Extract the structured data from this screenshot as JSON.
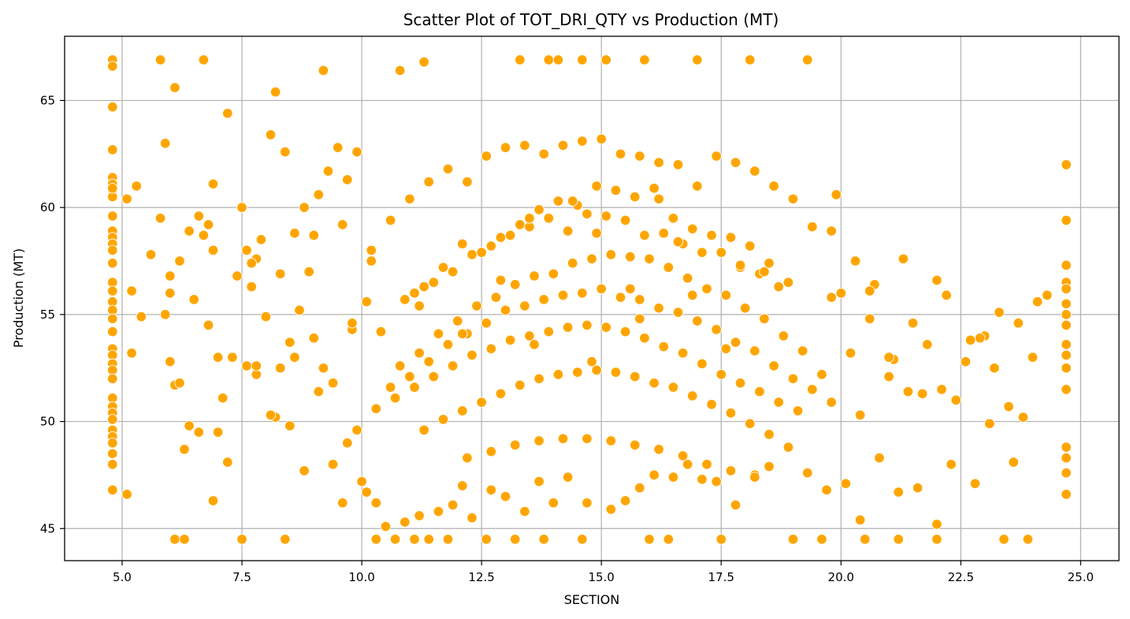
{
  "chart_data": {
    "type": "scatter",
    "title": "Scatter Plot of TOT_DRI_QTY vs Production (MT)",
    "xlabel": "SECTION",
    "ylabel": "Production (MT)",
    "xlim": [
      3.8,
      25.8
    ],
    "ylim": [
      43.5,
      68.0
    ],
    "x_ticks": [
      5.0,
      7.5,
      10.0,
      12.5,
      15.0,
      17.5,
      20.0,
      22.5,
      25.0
    ],
    "x_tick_labels": [
      "5.0",
      "7.5",
      "10.0",
      "12.5",
      "15.0",
      "17.5",
      "20.0",
      "22.5",
      "25.0"
    ],
    "y_ticks": [
      45,
      50,
      55,
      60,
      65
    ],
    "y_tick_labels": [
      "45",
      "50",
      "55",
      "60",
      "65"
    ],
    "grid": true,
    "point_color": "#FFA500",
    "point_edge_color": "#FFFFFF",
    "series": [
      {
        "x": [
          4.8,
          4.8,
          4.8,
          4.8,
          4.8,
          4.8,
          4.8,
          4.8,
          4.8,
          4.8,
          4.8,
          4.8,
          4.8,
          4.8,
          4.8,
          4.8,
          4.8,
          4.8,
          4.8,
          4.8,
          4.8,
          4.8,
          4.8,
          4.8,
          4.8,
          4.8,
          4.8,
          4.8,
          4.8,
          4.8,
          4.8,
          4.8,
          4.8,
          4.8,
          4.8,
          4.8,
          24.7,
          24.7,
          24.7,
          24.7,
          24.7,
          24.7,
          24.7,
          24.7,
          24.7,
          24.7,
          24.7,
          24.7,
          24.7,
          24.7,
          24.7,
          24.7,
          5.1,
          5.2,
          5.3,
          5.6,
          5.8,
          5.9,
          6.0,
          6.1,
          6.2,
          6.4,
          6.6,
          6.7,
          6.8,
          6.9,
          7.0,
          7.2,
          7.4,
          7.5,
          7.6,
          7.8,
          7.9,
          8.1,
          8.2,
          8.4,
          8.6,
          8.8,
          8.9,
          9.1,
          9.3,
          9.5,
          9.7,
          9.9,
          6.1,
          6.3,
          7.5,
          8.4,
          10.3,
          10.7,
          11.1,
          11.4,
          11.8,
          12.6,
          13.2,
          13.8,
          14.6,
          16.0,
          16.4,
          17.5,
          19.0,
          19.6,
          20.5,
          21.2,
          22.0,
          23.4,
          23.9,
          5.8,
          6.7,
          9.2,
          10.8,
          11.3,
          13.3,
          13.9,
          14.1,
          14.6,
          15.1,
          15.9,
          17.0,
          18.1,
          19.3,
          5.1,
          5.2,
          5.9,
          6.1,
          6.3,
          6.9,
          7.1,
          7.8,
          8.2,
          8.5,
          8.8,
          9.4,
          9.6,
          9.9,
          10.0,
          10.1,
          10.3,
          10.5,
          10.9,
          11.2,
          11.6,
          11.9,
          12.1,
          12.3,
          12.7,
          13.0,
          13.4,
          13.7,
          14.0,
          14.3,
          14.7,
          15.2,
          15.5,
          15.8,
          16.1,
          16.5,
          16.8,
          17.1,
          17.4,
          17.8,
          18.2,
          18.5,
          18.9,
          19.3,
          19.7,
          20.1,
          20.4,
          20.8,
          21.2,
          21.6,
          22.0,
          22.3,
          22.8,
          23.2,
          23.6,
          24.1,
          10.2,
          10.6,
          11.0,
          11.4,
          11.8,
          12.2,
          12.6,
          13.0,
          13.4,
          13.8,
          14.2,
          14.6,
          15.0,
          15.4,
          15.8,
          16.2,
          16.6,
          17.0,
          17.4,
          17.8,
          18.2,
          18.6,
          19.0,
          19.4,
          19.8,
          10.4,
          10.9,
          11.3,
          11.7,
          12.1,
          12.5,
          12.9,
          13.3,
          13.7,
          14.1,
          14.5,
          14.9,
          15.3,
          15.7,
          16.1,
          16.5,
          16.9,
          17.3,
          17.7,
          18.1,
          18.5,
          18.9,
          11.1,
          11.5,
          11.9,
          12.3,
          12.7,
          13.1,
          13.5,
          13.9,
          14.3,
          14.7,
          15.1,
          15.5,
          15.9,
          16.3,
          16.7,
          17.1,
          17.5,
          17.9,
          18.3,
          18.7,
          10.8,
          11.2,
          11.6,
          12.0,
          12.4,
          12.8,
          13.2,
          13.6,
          14.0,
          14.4,
          14.8,
          15.2,
          15.6,
          16.0,
          16.4,
          16.8,
          17.2,
          17.6,
          18.0,
          18.4,
          18.8,
          19.2,
          10.6,
          11.0,
          11.4,
          11.8,
          12.2,
          12.6,
          13.0,
          13.4,
          13.8,
          14.2,
          14.6,
          15.0,
          15.4,
          15.8,
          16.2,
          16.6,
          17.0,
          17.4,
          17.8,
          18.2,
          18.6,
          19.0,
          19.4,
          19.8,
          10.3,
          10.7,
          11.1,
          11.5,
          11.9,
          12.3,
          12.7,
          13.1,
          13.5,
          13.9,
          14.3,
          14.7,
          15.1,
          15.5,
          15.9,
          16.3,
          16.7,
          17.1,
          17.5,
          17.9,
          18.3,
          18.7,
          19.1,
          11.3,
          11.7,
          12.1,
          12.5,
          12.9,
          13.3,
          13.7,
          14.1,
          14.5,
          14.9,
          15.3,
          15.7,
          16.1,
          16.5,
          16.9,
          17.3,
          17.7,
          18.1,
          18.5,
          12.2,
          12.7,
          13.2,
          13.7,
          14.2,
          14.7,
          15.2,
          15.7,
          16.2,
          16.7,
          17.2,
          17.7,
          18.2,
          6.2,
          6.5,
          6.8,
          7.3,
          7.7,
          8.0,
          8.3,
          8.7,
          9.0,
          9.4,
          9.8,
          10.1,
          19.6,
          20.0,
          20.3,
          20.6,
          21.0,
          21.4,
          21.8,
          22.2,
          22.6,
          23.0,
          23.5,
          24.0,
          6.4,
          7.0,
          7.6,
          8.1,
          8.6,
          9.1,
          9.7,
          19.8,
          20.2,
          20.7,
          21.1,
          21.5,
          22.1,
          22.9,
          23.3,
          23.8,
          5.4,
          6.0,
          6.6,
          7.2,
          7.8,
          8.5,
          9.2,
          9.8,
          20.4,
          21.0,
          21.7,
          22.4,
          23.1,
          23.7,
          24.3,
          6.0,
          6.9,
          7.7,
          8.3,
          9.0,
          9.6,
          10.2,
          19.9,
          20.6,
          21.3,
          22.0,
          22.7,
          12.1,
          13.6,
          14.9,
          15.6,
          16.6,
          17.9,
          14.4,
          15.8,
          12.9,
          16.9,
          13.5,
          18.4,
          11.2,
          14.8,
          16.2,
          17.6
        ],
        "y": [
          66.9,
          66.6,
          64.7,
          62.7,
          61.4,
          61.1,
          60.8,
          60.5,
          59.6,
          58.9,
          58.6,
          58.3,
          58.0,
          57.4,
          56.5,
          56.1,
          55.6,
          55.2,
          54.2,
          53.4,
          53.1,
          52.7,
          52.4,
          52.0,
          51.1,
          50.7,
          50.4,
          50.1,
          49.6,
          49.3,
          49.0,
          48.5,
          48.0,
          46.8,
          60.9,
          54.8,
          62.0,
          59.4,
          57.3,
          56.5,
          56.2,
          55.5,
          55.0,
          54.5,
          53.6,
          53.1,
          52.5,
          51.5,
          48.8,
          48.3,
          47.6,
          46.6,
          60.4,
          56.1,
          61.0,
          57.8,
          59.5,
          63.0,
          56.0,
          65.6,
          57.5,
          58.9,
          59.6,
          58.7,
          59.2,
          61.1,
          53.0,
          64.4,
          56.8,
          60.0,
          58.0,
          57.6,
          58.5,
          63.4,
          65.4,
          62.6,
          58.8,
          60.0,
          57.0,
          60.6,
          61.7,
          62.8,
          61.3,
          62.6,
          44.5,
          44.5,
          44.5,
          44.5,
          44.5,
          44.5,
          44.5,
          44.5,
          44.5,
          44.5,
          44.5,
          44.5,
          44.5,
          44.5,
          44.5,
          44.5,
          44.5,
          44.5,
          44.5,
          44.5,
          44.5,
          44.5,
          44.5,
          66.9,
          66.9,
          66.4,
          66.4,
          66.8,
          66.9,
          66.9,
          66.9,
          66.9,
          66.9,
          66.9,
          66.9,
          66.9,
          66.9,
          46.6,
          53.2,
          55.0,
          51.7,
          48.7,
          46.3,
          51.1,
          52.2,
          50.2,
          49.8,
          47.7,
          48.0,
          46.2,
          49.6,
          47.2,
          46.7,
          46.2,
          45.1,
          45.3,
          45.6,
          45.8,
          46.1,
          47.0,
          45.5,
          46.8,
          46.5,
          45.8,
          47.2,
          46.2,
          47.4,
          46.2,
          45.9,
          46.3,
          46.9,
          47.5,
          47.4,
          48.0,
          47.3,
          47.2,
          46.1,
          47.5,
          47.9,
          48.8,
          47.6,
          46.8,
          47.1,
          45.4,
          48.3,
          46.7,
          46.9,
          45.2,
          48.0,
          47.1,
          52.5,
          48.1,
          55.6,
          57.5,
          59.4,
          60.4,
          61.2,
          61.8,
          61.2,
          62.4,
          62.8,
          62.9,
          62.5,
          62.9,
          63.1,
          63.2,
          62.5,
          62.4,
          62.1,
          62.0,
          61.0,
          62.4,
          62.1,
          61.7,
          61.0,
          60.4,
          59.1,
          58.9,
          54.2,
          55.7,
          56.3,
          57.2,
          58.3,
          57.9,
          58.6,
          59.2,
          59.9,
          60.3,
          60.1,
          61.0,
          60.8,
          60.5,
          60.9,
          59.5,
          59.0,
          58.7,
          58.6,
          58.2,
          57.4,
          56.5,
          56.0,
          56.5,
          57.0,
          57.8,
          58.2,
          58.7,
          59.1,
          59.5,
          58.9,
          59.7,
          59.6,
          59.4,
          58.7,
          58.8,
          58.3,
          57.9,
          57.9,
          57.2,
          56.9,
          56.3,
          52.6,
          53.2,
          54.1,
          54.7,
          55.4,
          55.8,
          56.4,
          56.8,
          56.9,
          57.4,
          57.6,
          57.8,
          57.7,
          57.6,
          57.2,
          56.7,
          56.2,
          55.9,
          55.3,
          54.8,
          54.0,
          53.3,
          51.6,
          52.1,
          52.8,
          53.6,
          54.1,
          54.6,
          55.2,
          55.4,
          55.7,
          55.9,
          56.0,
          56.2,
          55.8,
          55.7,
          55.3,
          55.1,
          54.7,
          54.3,
          53.7,
          53.3,
          52.6,
          52.0,
          51.5,
          50.9,
          50.6,
          51.1,
          51.6,
          52.1,
          52.6,
          53.1,
          53.4,
          53.8,
          54.0,
          54.2,
          54.4,
          54.5,
          54.4,
          54.2,
          53.9,
          53.5,
          53.2,
          52.7,
          52.2,
          51.8,
          51.4,
          50.9,
          50.5,
          49.6,
          50.1,
          50.5,
          50.9,
          51.3,
          51.7,
          52.0,
          52.2,
          52.3,
          52.4,
          52.3,
          52.1,
          51.8,
          51.6,
          51.2,
          50.8,
          50.4,
          49.9,
          49.4,
          48.3,
          48.6,
          48.9,
          49.1,
          49.2,
          49.2,
          49.1,
          48.9,
          48.7,
          48.4,
          48.0,
          47.7,
          47.4,
          51.8,
          55.7,
          54.5,
          53.0,
          56.3,
          54.9,
          52.5,
          55.2,
          53.9,
          51.8,
          54.3,
          55.6,
          52.2,
          56.0,
          57.5,
          54.8,
          52.1,
          51.4,
          53.6,
          55.9,
          52.8,
          54.0,
          50.7,
          53.0,
          49.8,
          49.5,
          52.6,
          50.3,
          53.0,
          51.4,
          49.0,
          55.8,
          53.2,
          56.4,
          52.9,
          54.6,
          51.5,
          53.9,
          55.1,
          50.2,
          54.9,
          52.8,
          49.5,
          48.1,
          52.6,
          53.7,
          52.5,
          54.6,
          50.3,
          53.0,
          51.3,
          51.0,
          49.9,
          54.6,
          55.9,
          56.8,
          58.0,
          57.4,
          56.9,
          58.7,
          59.2,
          58.0,
          60.6,
          56.1,
          57.6,
          56.6,
          53.8,
          54.1,
          53.6,
          58.8,
          56.2,
          58.4,
          57.3,
          60.3,
          54.8,
          56.6,
          55.9,
          59.5,
          57.0,
          55.4,
          52.8,
          60.4,
          53.4
        ]
      }
    ]
  }
}
